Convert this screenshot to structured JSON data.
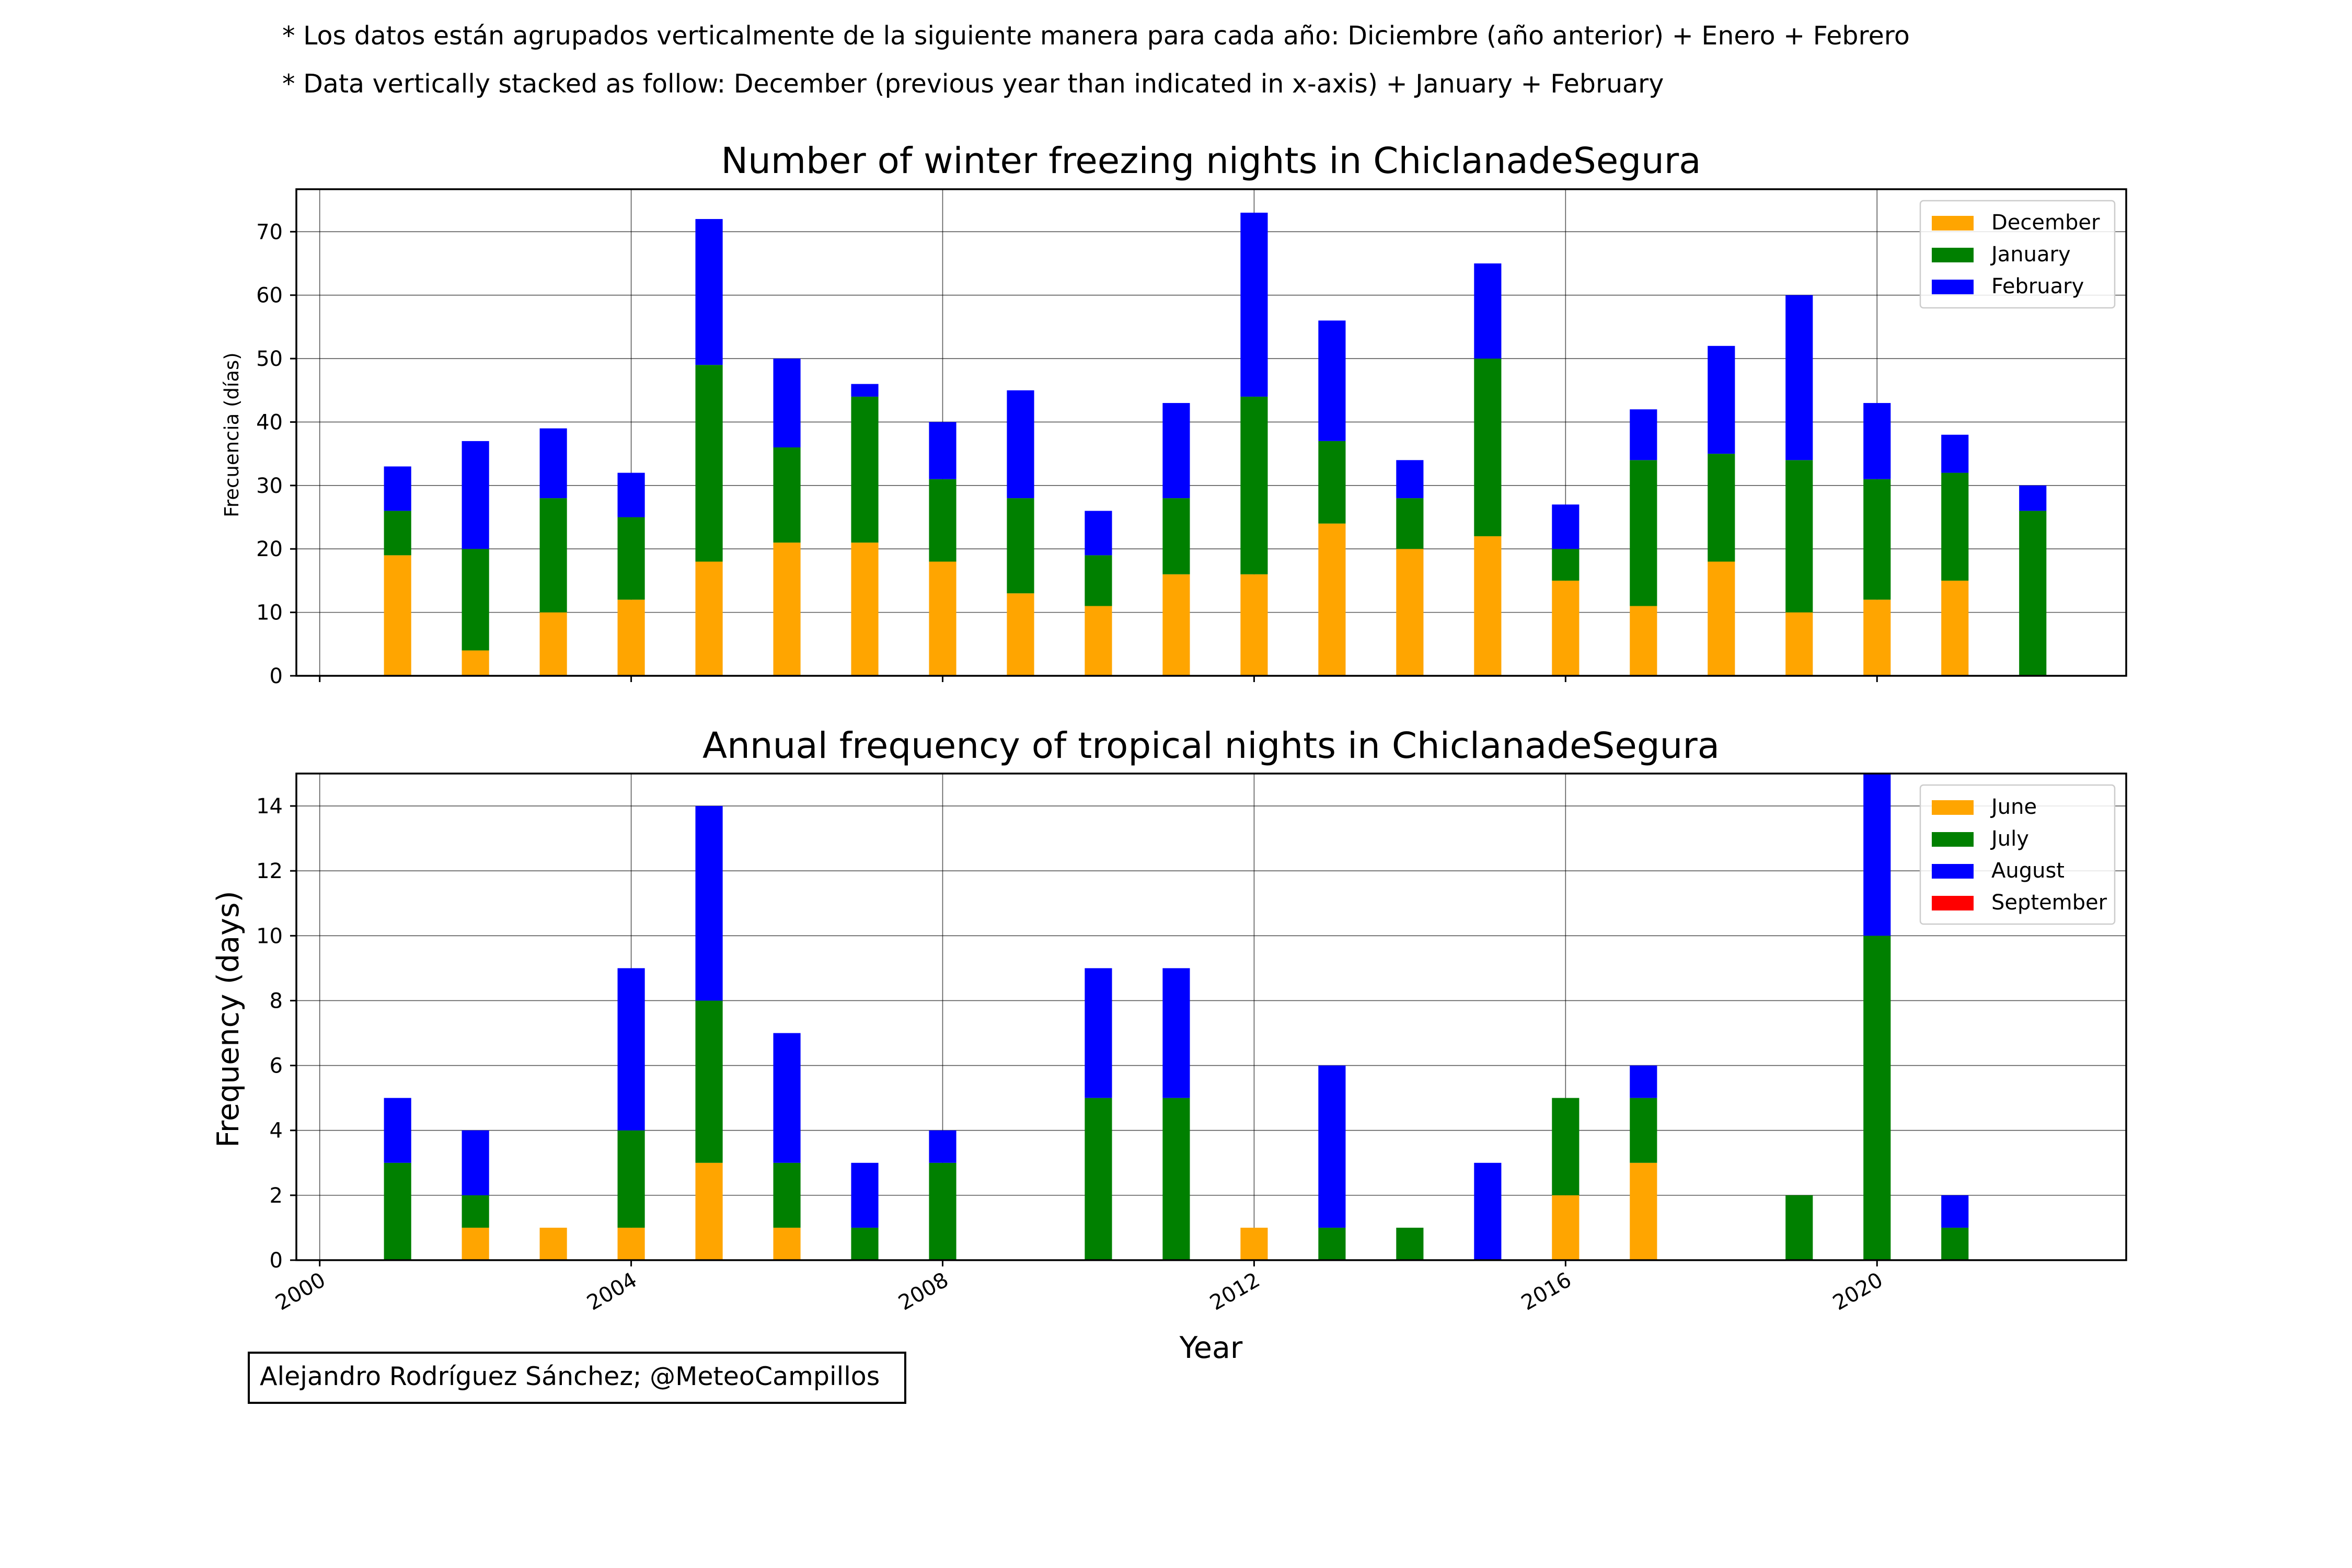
{
  "notes": {
    "line1": "* Los datos están agrupados verticalmente de la siguiente manera para cada año: Diciembre (año anterior) + Enero  + Febrero",
    "line2": "* Data vertically stacked as follow: December (previous year than indicated in x-axis) + January  + February"
  },
  "credit": "Alejandro Rodríguez Sánchez; @MeteoCampillos",
  "chart_data": [
    {
      "type": "bar",
      "stacked": true,
      "title": "Number of winter freezing nights in ChiclanadeSegura",
      "xlabel": "",
      "ylabel": "Frecuencia (días)",
      "x": [
        2001,
        2002,
        2003,
        2004,
        2005,
        2006,
        2007,
        2008,
        2009,
        2010,
        2011,
        2012,
        2013,
        2014,
        2015,
        2016,
        2017,
        2018,
        2019,
        2020,
        2021,
        2022
      ],
      "series": [
        {
          "name": "December",
          "color": "#FFA500",
          "values": [
            19,
            4,
            10,
            12,
            18,
            21,
            21,
            18,
            13,
            11,
            16,
            16,
            24,
            20,
            22,
            15,
            11,
            18,
            10,
            12,
            15,
            0
          ]
        },
        {
          "name": "January",
          "color": "#008000",
          "values": [
            7,
            16,
            18,
            13,
            31,
            15,
            23,
            13,
            15,
            8,
            12,
            28,
            13,
            8,
            28,
            5,
            23,
            17,
            24,
            19,
            17,
            26
          ]
        },
        {
          "name": "February",
          "color": "#0000FF",
          "values": [
            7,
            17,
            11,
            7,
            23,
            14,
            2,
            9,
            17,
            7,
            15,
            29,
            19,
            6,
            15,
            7,
            8,
            17,
            26,
            12,
            6,
            4
          ]
        }
      ],
      "xlim": [
        1999.7,
        2023.2
      ],
      "ylim": [
        0,
        76.7
      ],
      "xticks": [
        2000,
        2004,
        2008,
        2012,
        2016,
        2020
      ],
      "yticks": [
        0,
        10,
        20,
        30,
        40,
        50,
        60,
        70
      ],
      "xticklabels_shown": false,
      "grid": true,
      "legend": "top-right"
    },
    {
      "type": "bar",
      "stacked": true,
      "title": "Annual frequency of tropical nights in ChiclanadeSegura",
      "xlabel": "Year",
      "ylabel": "Frequency (days)",
      "x": [
        2001,
        2002,
        2003,
        2004,
        2005,
        2006,
        2007,
        2008,
        2009,
        2010,
        2011,
        2012,
        2013,
        2014,
        2015,
        2016,
        2017,
        2018,
        2019,
        2020,
        2021,
        2022
      ],
      "series": [
        {
          "name": "June",
          "color": "#FFA500",
          "values": [
            0,
            1,
            1,
            1,
            3,
            1,
            0,
            0,
            0,
            0,
            0,
            1,
            0,
            0,
            0,
            2,
            3,
            0,
            0,
            0,
            0,
            0
          ]
        },
        {
          "name": "July",
          "color": "#008000",
          "values": [
            3,
            1,
            0,
            3,
            5,
            2,
            1,
            3,
            0,
            5,
            5,
            0,
            1,
            1,
            0,
            3,
            2,
            0,
            2,
            10,
            1,
            0
          ]
        },
        {
          "name": "August",
          "color": "#0000FF",
          "values": [
            2,
            2,
            0,
            5,
            6,
            4,
            2,
            1,
            0,
            4,
            4,
            0,
            5,
            0,
            3,
            0,
            1,
            0,
            0,
            5,
            1,
            0
          ]
        },
        {
          "name": "September",
          "color": "#FF0000",
          "values": [
            0,
            0,
            0,
            0,
            0,
            0,
            0,
            0,
            0,
            0,
            0,
            0,
            0,
            0,
            0,
            0,
            0,
            0,
            0,
            0,
            0,
            0
          ]
        }
      ],
      "xlim": [
        1999.7,
        2023.2
      ],
      "ylim": [
        0,
        15
      ],
      "xticks": [
        2000,
        2004,
        2008,
        2012,
        2016,
        2020
      ],
      "yticks": [
        0,
        2,
        4,
        6,
        8,
        10,
        12,
        14
      ],
      "xticklabels": [
        "2000",
        "2004",
        "2008",
        "2012",
        "2016",
        "2020"
      ],
      "grid": true,
      "legend": "top-right"
    }
  ]
}
